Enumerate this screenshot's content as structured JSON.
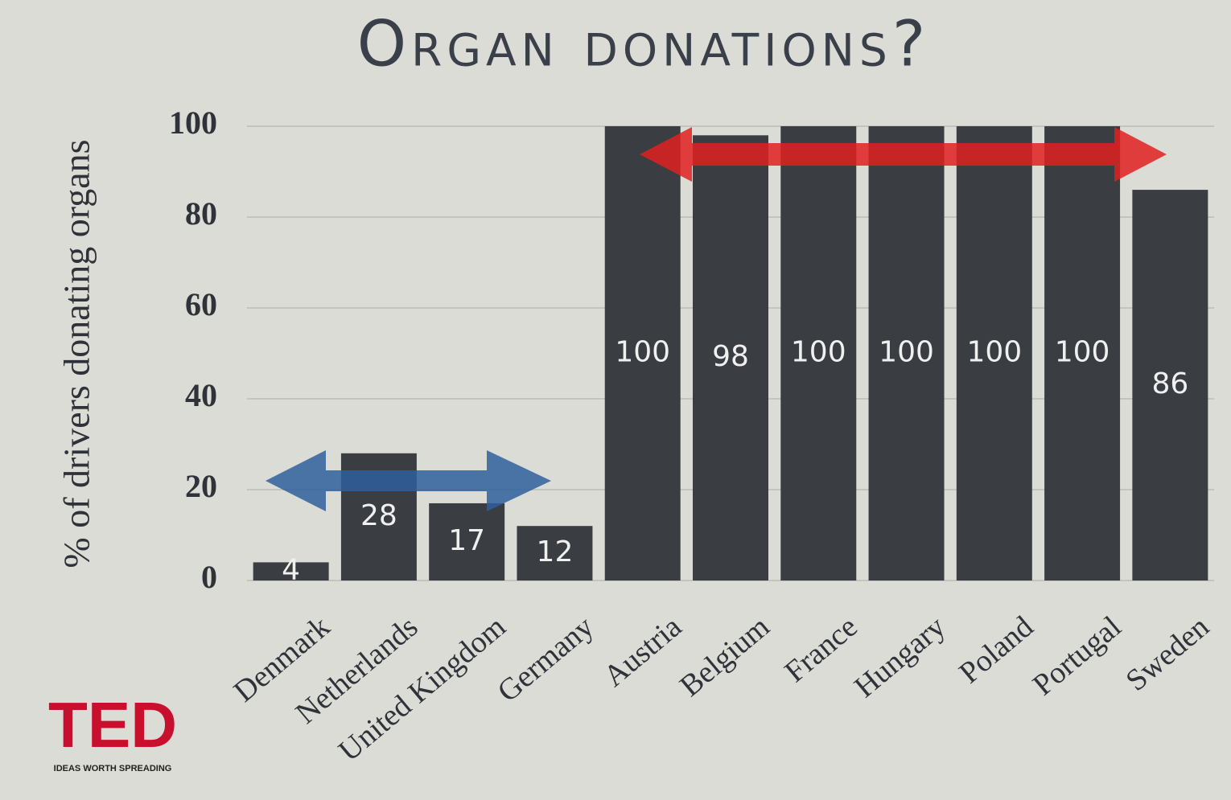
{
  "chart_data": {
    "type": "bar",
    "title": "Organ donations?",
    "y_label": "% of drivers donating organs",
    "categories": [
      "Denmark",
      "Netherlands",
      "United Kingdom",
      "Germany",
      "Austria",
      "Belgium",
      "France",
      "Hungary",
      "Poland",
      "Portugal",
      "Sweden"
    ],
    "values": [
      4,
      28,
      17,
      12,
      100,
      98,
      100,
      100,
      100,
      100,
      86
    ],
    "color": "#3a3d42",
    "ylim": [
      0,
      100
    ],
    "yticks": [
      0,
      20,
      40,
      60,
      80,
      100
    ],
    "grid": true
  },
  "logo": {
    "name": "TED",
    "tagline": "IDEAS WORTH SPREADING"
  }
}
